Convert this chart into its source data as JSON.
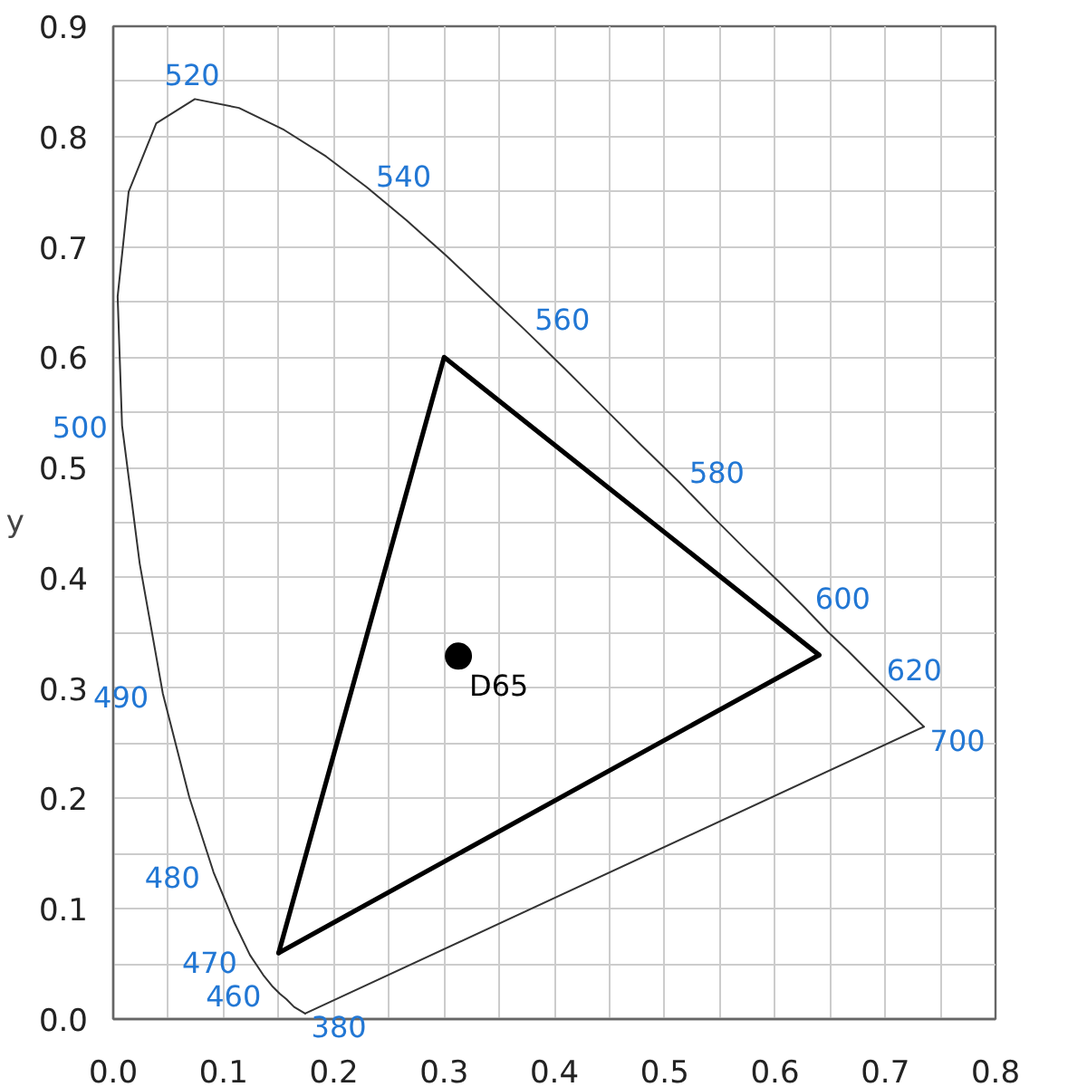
{
  "chart_data": {
    "type": "line",
    "ylabel": "y",
    "xlim": [
      0,
      0.8
    ],
    "ylim": [
      0,
      0.9
    ],
    "xticks": [
      {
        "value": 0,
        "label": "0.0"
      },
      {
        "value": 0.05,
        "label": null
      },
      0.1,
      {
        "value": 0.15,
        "label": null
      },
      0.2,
      {
        "value": 0.25,
        "label": null
      },
      0.3,
      {
        "value": 0.35,
        "label": null
      },
      0.4,
      {
        "value": 0.45,
        "label": null
      },
      0.5,
      {
        "value": 0.55,
        "label": null
      },
      0.6,
      {
        "value": 0.65,
        "label": null
      },
      0.7,
      {
        "value": 0.75,
        "label": null
      },
      0.8
    ],
    "yticks": [
      {
        "value": 0,
        "label": "0.0"
      },
      {
        "value": 0.05,
        "label": null
      },
      0.1,
      {
        "value": 0.15,
        "label": null
      },
      0.2,
      {
        "value": 0.25,
        "label": null
      },
      0.3,
      {
        "value": 0.35,
        "label": null
      },
      0.4,
      {
        "value": 0.45,
        "label": null
      },
      0.5,
      {
        "value": 0.55,
        "label": null
      },
      0.6,
      {
        "value": 0.65,
        "label": null
      },
      0.7,
      {
        "value": 0.75,
        "label": null
      },
      0.8,
      {
        "value": 0.85,
        "label": null
      },
      0.9
    ],
    "grid": true,
    "series": [
      {
        "color": "#333333",
        "x": [
          0.174,
          0.735
        ],
        "values": [
          0.005,
          0.265
        ]
      },
      {
        "color": "#333333",
        "x": [
          0.174,
          0.164,
          0.157,
          0.151,
          0.144,
          0.136,
          0.124,
          0.11,
          0.091,
          0.069,
          0.045,
          0.024,
          0.008,
          0.004,
          0.014,
          0.039,
          0.074,
          0.114,
          0.155,
          0.193,
          0.23,
          0.266,
          0.302,
          0.337,
          0.373,
          0.409,
          0.444,
          0.479,
          0.513,
          0.545,
          0.575,
          0.603,
          0.627,
          0.648,
          0.666,
          0.692,
          0.708,
          0.719,
          0.73,
          0.735
        ],
        "values": [
          0.005,
          0.011,
          0.018,
          0.023,
          0.03,
          0.04,
          0.058,
          0.087,
          0.133,
          0.201,
          0.295,
          0.413,
          0.538,
          0.655,
          0.75,
          0.812,
          0.834,
          0.826,
          0.806,
          0.782,
          0.754,
          0.724,
          0.692,
          0.659,
          0.625,
          0.59,
          0.555,
          0.52,
          0.487,
          0.454,
          0.424,
          0.397,
          0.373,
          0.351,
          0.334,
          0.308,
          0.292,
          0.281,
          0.27,
          0.265
        ]
      },
      {
        "color": "#000000",
        "x": [
          0.15,
          0.3,
          0.64
        ],
        "values": [
          0.06,
          0.6,
          0.33
        ]
      },
      {
        "color": "#000000",
        "x": [
          0.15,
          0.64
        ],
        "values": [
          0.06,
          0.33
        ]
      },
      {
        "type": "scatter",
        "name": "D65",
        "color": "#000000",
        "marker": "circle",
        "x": [
          0.313
        ],
        "values": [
          0.329
        ]
      }
    ],
    "annotations": [
      {
        "text": "380",
        "x": 0.174,
        "y": 0.005
      },
      {
        "text": "460",
        "x": 0.144,
        "y": 0.03
      },
      {
        "text": "470",
        "x": 0.124,
        "y": 0.058
      },
      {
        "text": "480",
        "x": 0.091,
        "y": 0.133
      },
      {
        "text": "490",
        "x": 0.045,
        "y": 0.295
      },
      {
        "text": "500",
        "x": 0.008,
        "y": 0.538
      },
      {
        "text": "520",
        "x": 0.074,
        "y": 0.834
      },
      {
        "text": "540",
        "x": 0.23,
        "y": 0.754
      },
      {
        "text": "560",
        "x": 0.373,
        "y": 0.625
      },
      {
        "text": "580",
        "x": 0.513,
        "y": 0.487
      },
      {
        "text": "600",
        "x": 0.627,
        "y": 0.373
      },
      {
        "text": "620",
        "x": 0.692,
        "y": 0.308
      },
      {
        "text": "700",
        "x": 0.735,
        "y": 0.265
      }
    ]
  }
}
